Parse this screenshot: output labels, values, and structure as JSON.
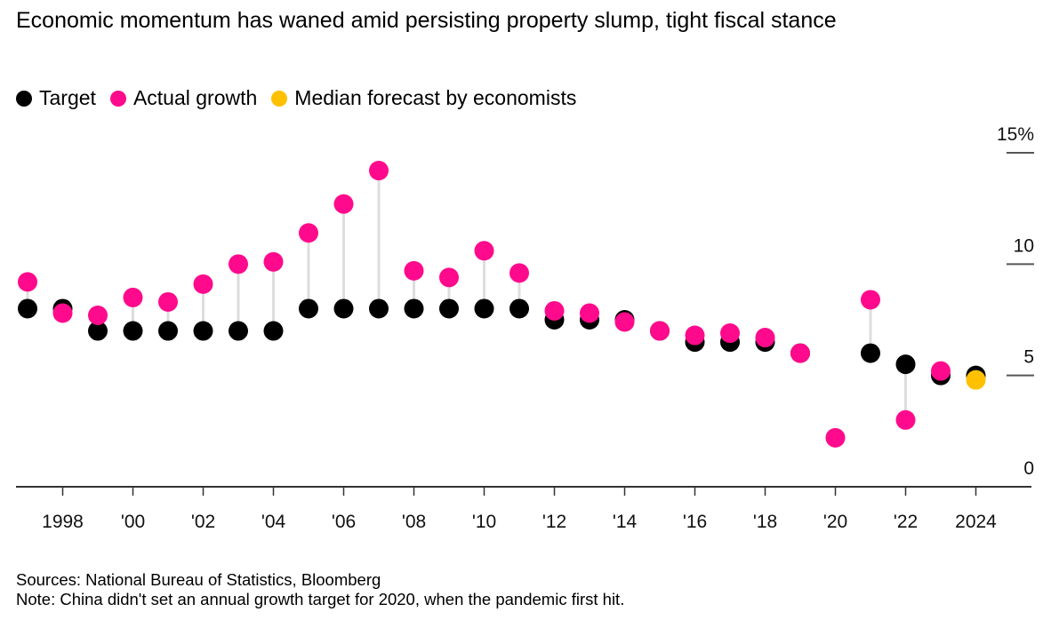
{
  "title": "Economic momentum has waned amid persisting property slump, tight fiscal stance",
  "legend": [
    {
      "label": "Target",
      "color": "#000000"
    },
    {
      "label": "Actual growth",
      "color": "#FF0A8C"
    },
    {
      "label": "Median forecast by economists",
      "color": "#FFC000"
    }
  ],
  "sources": "Sources: National Bureau of Statistics, Bloomberg",
  "note": "Note: China didn't set an annual growth target for 2020, when the pandemic first hit.",
  "chart_data": {
    "type": "scatter",
    "title": "Economic momentum has waned amid persisting property slump, tight fiscal stance",
    "xlabel": "",
    "ylabel": "",
    "x": [
      1997,
      1998,
      1999,
      2000,
      2001,
      2002,
      2003,
      2004,
      2005,
      2006,
      2007,
      2008,
      2009,
      2010,
      2011,
      2012,
      2013,
      2014,
      2015,
      2016,
      2017,
      2018,
      2019,
      2020,
      2021,
      2022,
      2023,
      2024
    ],
    "series": [
      {
        "name": "Target",
        "color": "#000000",
        "values": [
          8,
          8,
          7,
          7,
          7,
          7,
          7,
          7,
          8,
          8,
          8,
          8,
          8,
          8,
          8,
          7.5,
          7.5,
          7.5,
          7,
          6.5,
          6.5,
          6.5,
          6,
          null,
          6,
          5.5,
          5,
          5
        ]
      },
      {
        "name": "Actual growth",
        "color": "#FF0A8C",
        "values": [
          9.2,
          7.8,
          7.7,
          8.5,
          8.3,
          9.1,
          10.0,
          10.1,
          11.4,
          12.7,
          14.2,
          9.7,
          9.4,
          10.6,
          9.6,
          7.9,
          7.8,
          7.4,
          7.0,
          6.8,
          6.9,
          6.7,
          6.0,
          2.2,
          8.4,
          3.0,
          5.2,
          null
        ]
      },
      {
        "name": "Median forecast by economists",
        "color": "#FFC000",
        "values": [
          null,
          null,
          null,
          null,
          null,
          null,
          null,
          null,
          null,
          null,
          null,
          null,
          null,
          null,
          null,
          null,
          null,
          null,
          null,
          null,
          null,
          null,
          null,
          null,
          null,
          null,
          null,
          4.8
        ]
      }
    ],
    "xticks": [
      1998,
      2000,
      2002,
      2004,
      2006,
      2008,
      2010,
      2012,
      2014,
      2016,
      2018,
      2020,
      2022,
      2024
    ],
    "xtick_labels": [
      "1998",
      "'00",
      "'02",
      "'04",
      "'06",
      "'08",
      "'10",
      "'12",
      "'14",
      "'16",
      "'18",
      "'20",
      "'22",
      "2024"
    ],
    "yticks": [
      0,
      5,
      10,
      15
    ],
    "ytick_labels": [
      "0",
      "5",
      "10",
      "15%"
    ],
    "ylim": [
      0,
      15
    ],
    "xlim": [
      1996.7,
      2025.6
    ],
    "grid": false,
    "legend_position": "top-left",
    "stem_color": "#DDDDDD"
  }
}
